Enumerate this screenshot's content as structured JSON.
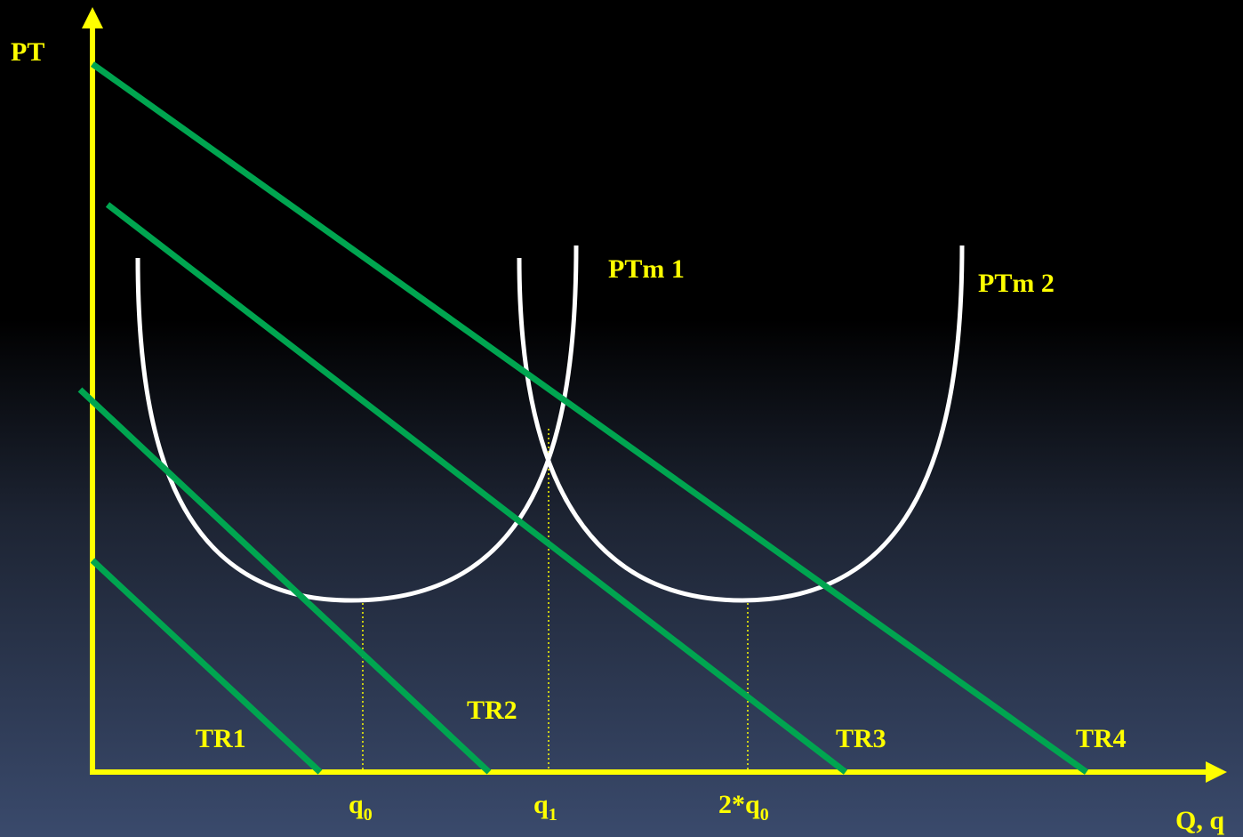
{
  "axes": {
    "y_label": "PT",
    "x_label": "Q, q"
  },
  "curves": [
    {
      "name": "PTm 1"
    },
    {
      "name": "PTm 2"
    }
  ],
  "lines": [
    {
      "name": "TR1"
    },
    {
      "name": "TR2"
    },
    {
      "name": "TR3"
    },
    {
      "name": "TR4"
    }
  ],
  "ticks": {
    "q0": {
      "main": "q",
      "sub": "0"
    },
    "q1": {
      "main": "q",
      "sub": "1"
    },
    "q2": {
      "main": "2*q",
      "sub": "0"
    }
  },
  "colors": {
    "axis": "#ffff00",
    "curve": "#ffffff",
    "line": "#00a550",
    "label": "#ffff00"
  }
}
